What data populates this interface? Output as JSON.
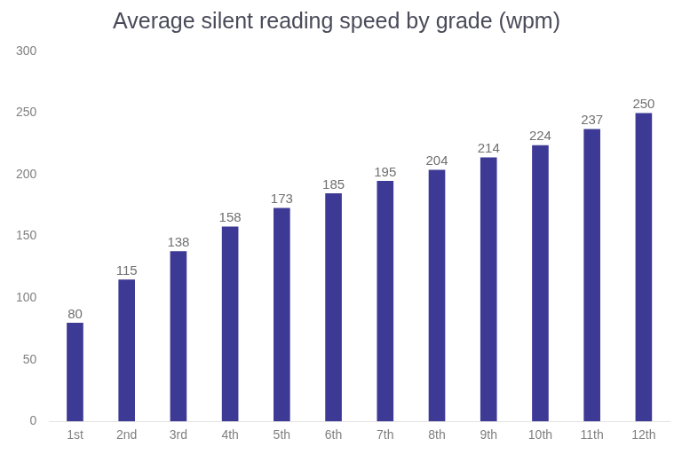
{
  "chart_data": {
    "type": "bar",
    "title": "Average silent reading speed by grade (wpm)",
    "categories": [
      "1st",
      "2nd",
      "3rd",
      "4th",
      "5th",
      "6th",
      "7th",
      "8th",
      "9th",
      "10th",
      "11th",
      "12th"
    ],
    "values": [
      80,
      115,
      138,
      158,
      173,
      185,
      195,
      204,
      214,
      224,
      237,
      250
    ],
    "color": "#3d3a96",
    "ylim": [
      0,
      300
    ],
    "yticks": [
      0,
      50,
      100,
      150,
      200,
      250,
      300
    ],
    "grid": false,
    "data_labels": true
  }
}
